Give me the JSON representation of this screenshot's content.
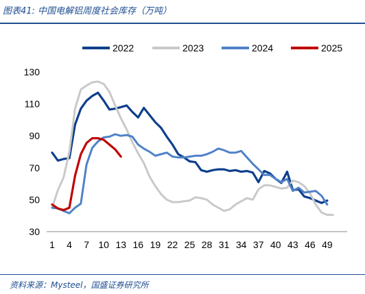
{
  "figure": {
    "title": "图表41:  中国电解铝周度社会库存（万吨）",
    "source": "资料来源：Mysteel，国盛证券研究所"
  },
  "colors": {
    "frame": "#1f4e91"
  },
  "chart_data": {
    "type": "line",
    "title": "",
    "xlabel": "",
    "ylabel": "",
    "xlim": [
      1,
      52
    ],
    "ylim": [
      30,
      130
    ],
    "x_ticks": [
      1,
      4,
      7,
      10,
      13,
      16,
      19,
      22,
      25,
      28,
      31,
      34,
      37,
      40,
      43,
      46,
      49
    ],
    "y_ticks": [
      30,
      50,
      70,
      90,
      110,
      130
    ],
    "grid": false,
    "legend_position": "top",
    "series": [
      {
        "name": "2022",
        "color": "#0e3f8c",
        "width": 3.2,
        "values": [
          79.5,
          74.5,
          75.5,
          76,
          97,
          107,
          112,
          115,
          117,
          112,
          106.5,
          107,
          108,
          109,
          105,
          101.5,
          107.5,
          103,
          98.5,
          95,
          89.5,
          84.5,
          78.5,
          76.5,
          74,
          73.5,
          68.5,
          67.5,
          68.5,
          69,
          69,
          68,
          68.5,
          67.5,
          68,
          67,
          61,
          68,
          66.5,
          63,
          60.5,
          67.5,
          56,
          56.5,
          52,
          51,
          49.5,
          48,
          49.5
        ]
      },
      {
        "name": "2023",
        "color": "#c9c9c9",
        "width": 3,
        "values": [
          45,
          56,
          64,
          80,
          107,
          119,
          121.5,
          123.5,
          124,
          122.5,
          117.5,
          109,
          101,
          94,
          86,
          79,
          73,
          64.5,
          58.5,
          53.5,
          50,
          48.5,
          48.5,
          49,
          49.5,
          51.5,
          51,
          50,
          47,
          45,
          43,
          44,
          47,
          49,
          51,
          50,
          56.5,
          59,
          59,
          58,
          57,
          57.5,
          62,
          61,
          58.5,
          54,
          47,
          42,
          40.5,
          40.5
        ]
      },
      {
        "name": "2024",
        "color": "#4f81c7",
        "width": 3,
        "values": [
          45,
          44.5,
          43,
          41.5,
          45,
          47.5,
          72,
          82.5,
          86.5,
          89,
          89.5,
          91,
          90,
          90.5,
          89.5,
          84.5,
          82,
          80,
          77.5,
          78.5,
          79.5,
          77,
          76.5,
          76.5,
          77,
          77.5,
          77.5,
          78.5,
          80,
          82,
          81,
          79.5,
          79.5,
          80.5,
          76.5,
          72.5,
          69,
          65.5,
          65.5,
          63,
          61,
          63,
          55.5,
          57.5,
          54.5,
          55,
          55.5,
          52.5,
          47
        ]
      },
      {
        "name": "2025",
        "color": "#c00000",
        "width": 3.2,
        "values": [
          47,
          44.5,
          43.5,
          45,
          65,
          78.5,
          85.5,
          88.5,
          88.5,
          87.5,
          84.5,
          81.5,
          77
        ]
      }
    ]
  }
}
